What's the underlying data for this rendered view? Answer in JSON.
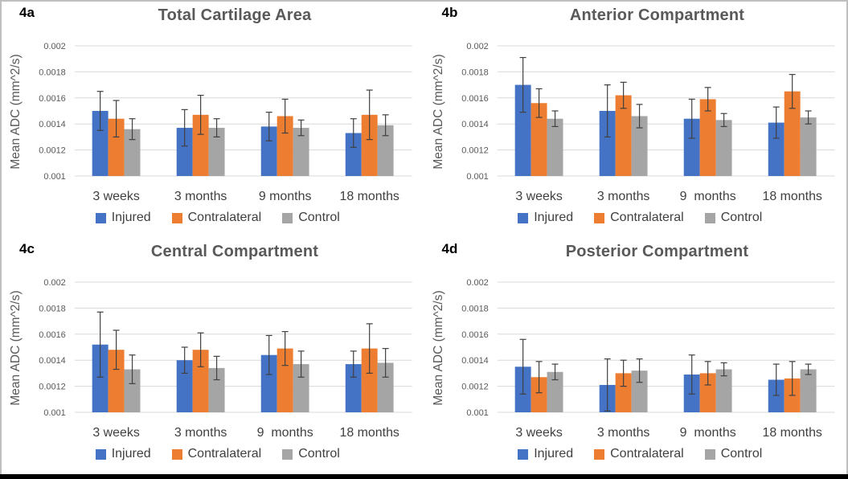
{
  "styles": {
    "background": "#FFFFFF",
    "frame_border_color": "#BFBFBF",
    "bottom_bar_color": "#000000",
    "gridline_color": "#D9D9D9",
    "error_bar_color": "#404040",
    "title_color": "#595959",
    "tick_label_color": "#595959",
    "category_label_color": "#404040",
    "legend_text_color": "#404040",
    "panel_label_color": "#000000",
    "injured_color": "#4472C4",
    "contralateral_color": "#ED7D31",
    "control_color": "#A5A5A5"
  },
  "chart_data": [
    {
      "panel_label": "4a",
      "title": "Total Cartilage Area",
      "type": "bar",
      "xlabel": "",
      "ylabel": "Mean ADC (mm^2/s)",
      "ylim": [
        0.001,
        0.002
      ],
      "ytick_values": [
        0.001,
        0.0012,
        0.0014,
        0.0016,
        0.0018,
        0.002
      ],
      "ytick_labels": [
        "0.001",
        "0.0012",
        "0.0014",
        "0.0016",
        "0.0018",
        "0.002"
      ],
      "grid": true,
      "legend_position": "bottom",
      "categories": [
        "3 weeks",
        "3 months",
        "9 months",
        "18 months"
      ],
      "series": [
        {
          "name": "Injured",
          "color": "#4472C4",
          "values": [
            0.0015,
            0.00137,
            0.00138,
            0.00133
          ],
          "errors": [
            0.00015,
            0.00014,
            0.00011,
            0.00011
          ]
        },
        {
          "name": "Contralateral",
          "color": "#ED7D31",
          "values": [
            0.00144,
            0.00147,
            0.00146,
            0.00147
          ],
          "errors": [
            0.00014,
            0.00015,
            0.00013,
            0.00019
          ]
        },
        {
          "name": "Control",
          "color": "#A5A5A5",
          "values": [
            0.00136,
            0.00137,
            0.00137,
            0.00139
          ],
          "errors": [
            8e-05,
            7e-05,
            6e-05,
            8e-05
          ]
        }
      ]
    },
    {
      "panel_label": "4b",
      "title": "Anterior Compartment",
      "type": "bar",
      "xlabel": "",
      "ylabel": "Mean ADC (mm^2/s)",
      "ylim": [
        0.001,
        0.002
      ],
      "ytick_values": [
        0.001,
        0.0012,
        0.0014,
        0.0016,
        0.0018,
        0.002
      ],
      "ytick_labels": [
        "0.001",
        "0.0012",
        "0.0014",
        "0.0016",
        "0.0018",
        "0.002"
      ],
      "grid": true,
      "legend_position": "bottom",
      "categories": [
        "3 weeks",
        "3 months",
        "9  months",
        "18 months"
      ],
      "series": [
        {
          "name": "Injured",
          "color": "#4472C4",
          "values": [
            0.0017,
            0.0015,
            0.00144,
            0.00141
          ],
          "errors": [
            0.00021,
            0.0002,
            0.00015,
            0.00012
          ]
        },
        {
          "name": "Contralateral",
          "color": "#ED7D31",
          "values": [
            0.00156,
            0.00162,
            0.00159,
            0.00165
          ],
          "errors": [
            0.00011,
            0.0001,
            9e-05,
            0.00013
          ]
        },
        {
          "name": "Control",
          "color": "#A5A5A5",
          "values": [
            0.00144,
            0.00146,
            0.00143,
            0.00145
          ],
          "errors": [
            6e-05,
            9e-05,
            5e-05,
            5e-05
          ]
        }
      ]
    },
    {
      "panel_label": "4c",
      "title": "Central Compartment",
      "type": "bar",
      "xlabel": "",
      "ylabel": "Mean ADC (mm^2/s)",
      "ylim": [
        0.001,
        0.002
      ],
      "ytick_values": [
        0.001,
        0.0012,
        0.0014,
        0.0016,
        0.0018,
        0.002
      ],
      "ytick_labels": [
        "0.001",
        "0.0012",
        "0.0014",
        "0.0016",
        "0.0018",
        "0.002"
      ],
      "grid": true,
      "legend_position": "bottom",
      "categories": [
        "3 weeks",
        "3 months",
        "9  months",
        "18 months"
      ],
      "series": [
        {
          "name": "Injured",
          "color": "#4472C4",
          "values": [
            0.00152,
            0.0014,
            0.00144,
            0.00137
          ],
          "errors": [
            0.00025,
            0.0001,
            0.00015,
            0.0001
          ]
        },
        {
          "name": "Contralateral",
          "color": "#ED7D31",
          "values": [
            0.00148,
            0.00148,
            0.00149,
            0.00149
          ],
          "errors": [
            0.00015,
            0.00013,
            0.00013,
            0.00019
          ]
        },
        {
          "name": "Control",
          "color": "#A5A5A5",
          "values": [
            0.00133,
            0.00134,
            0.00137,
            0.00138
          ],
          "errors": [
            0.00011,
            9e-05,
            0.0001,
            0.00011
          ]
        }
      ]
    },
    {
      "panel_label": "4d",
      "title": "Posterior Compartment",
      "type": "bar",
      "xlabel": "",
      "ylabel": "Mean ADC (mm^2/s)",
      "ylim": [
        0.001,
        0.002
      ],
      "ytick_values": [
        0.001,
        0.0012,
        0.0014,
        0.0016,
        0.0018,
        0.002
      ],
      "ytick_labels": [
        "0.001",
        "0.0012",
        "0.0014",
        "0.0016",
        "0.0018",
        "0.002"
      ],
      "grid": true,
      "legend_position": "bottom",
      "categories": [
        "3 weeks",
        "3 months",
        "9  months",
        "18 months"
      ],
      "series": [
        {
          "name": "Injured",
          "color": "#4472C4",
          "values": [
            0.00135,
            0.00121,
            0.00129,
            0.00125
          ],
          "errors": [
            0.00021,
            0.0002,
            0.00015,
            0.00012
          ]
        },
        {
          "name": "Contralateral",
          "color": "#ED7D31",
          "values": [
            0.00127,
            0.0013,
            0.0013,
            0.00126
          ],
          "errors": [
            0.00012,
            0.0001,
            9e-05,
            0.00013
          ]
        },
        {
          "name": "Control",
          "color": "#A5A5A5",
          "values": [
            0.00131,
            0.00132,
            0.00133,
            0.00133
          ],
          "errors": [
            6e-05,
            9e-05,
            5e-05,
            4e-05
          ]
        }
      ]
    }
  ]
}
